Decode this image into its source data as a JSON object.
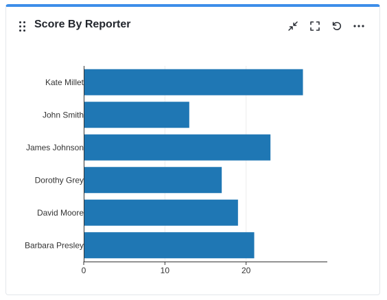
{
  "panel": {
    "title": "Score By Reporter"
  },
  "toolbar": {
    "icons": [
      "collapse-icon",
      "fullscreen-icon",
      "refresh-icon",
      "more-options-icon"
    ]
  },
  "chart_data": {
    "type": "bar",
    "orientation": "horizontal",
    "categories": [
      "Kate Millet",
      "John Smith",
      "James Johnson",
      "Dorothy Grey",
      "David Moore",
      "Barbara Presley"
    ],
    "values": [
      27,
      13,
      23,
      17,
      19,
      21
    ],
    "x_ticks": [
      "0",
      "10",
      "20"
    ],
    "xlim": [
      0,
      30
    ],
    "grid": true,
    "legend": false,
    "colors": {
      "bar": "#1f77b4",
      "axis": "#333333",
      "grid": "#ececec"
    }
  }
}
